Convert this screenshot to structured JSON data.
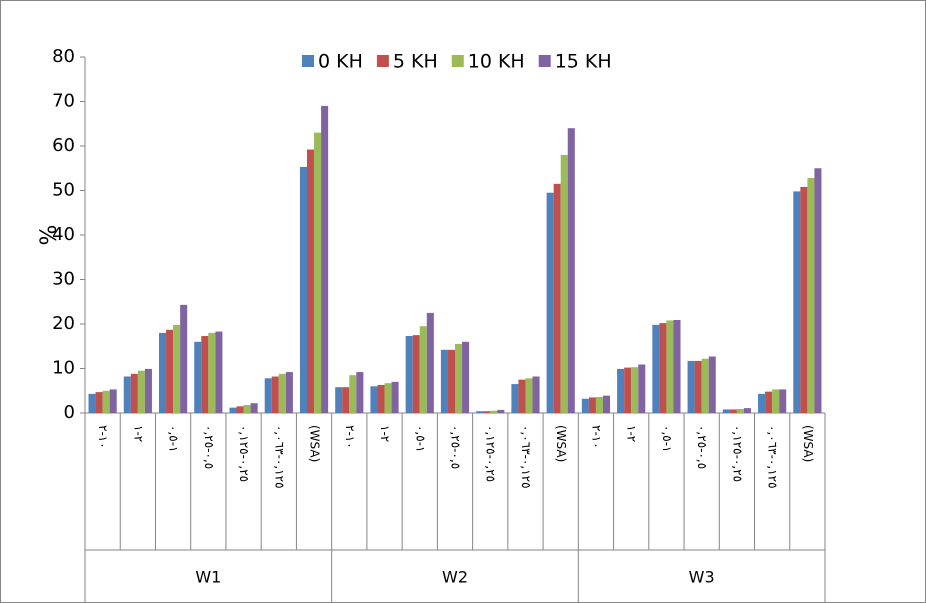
{
  "chart_data": {
    "type": "bar",
    "y_label": "%",
    "categories": [
      "١٠-٢",
      "٢-١",
      "١-٠,٥",
      "٠,٥-٠,٢٥",
      "٠,٢٥-٠,١٢٥",
      "٠,١٢٥-٠,٠٦٣",
      "(WSA)",
      "١٠-٢",
      "٢-١",
      "١-٠,٥",
      "٠,٥-٠,٢٥",
      "٠,٢٥-٠,١٢٥",
      "٠,١٢٥-٠,٠٦٣",
      "(WSA)",
      "١٠-٢",
      "٢-١",
      "١-٠,٥",
      "٠,٥-٠,٢٥",
      "٠,٢٥-٠,١٢٥",
      "٠,١٢٥-٠,٠٦٣",
      "(WSA)"
    ],
    "groups": [
      "W1",
      "W2",
      "W3"
    ],
    "series": [
      {
        "name": "0 KH",
        "color": "#4f81bd",
        "values": [
          4.3,
          8.2,
          18,
          16,
          1.2,
          7.8,
          55.3,
          5.8,
          6,
          17.3,
          14.2,
          0.4,
          6.5,
          49.5,
          3.2,
          9.9,
          19.8,
          11.7,
          0.8,
          4.3,
          49.8
        ]
      },
      {
        "name": "5 KH",
        "color": "#c0504d",
        "values": [
          4.7,
          8.8,
          18.7,
          17.3,
          1.5,
          8.2,
          59.2,
          5.8,
          6.3,
          17.5,
          14.2,
          0.4,
          7.5,
          51.5,
          3.5,
          10.2,
          20.2,
          11.7,
          0.8,
          4.8,
          50.8
        ]
      },
      {
        "name": "10 KH",
        "color": "#9bbb59",
        "values": [
          5,
          9.5,
          19.8,
          18,
          1.8,
          8.8,
          63,
          8.5,
          6.7,
          19.5,
          15.5,
          0.5,
          7.8,
          58,
          3.6,
          10.3,
          20.8,
          12.2,
          0.9,
          5.3,
          52.8
        ]
      },
      {
        "name": "15 KH",
        "color": "#8064a2",
        "values": [
          5.3,
          9.9,
          24.3,
          18.3,
          2.2,
          9.2,
          69,
          9.2,
          7,
          22.5,
          16,
          0.7,
          8.2,
          64,
          3.9,
          10.9,
          20.9,
          12.7,
          1.1,
          5.3,
          55
        ]
      }
    ],
    "ylim": [
      0,
      80
    ],
    "yticks": [
      0,
      10,
      20,
      30,
      40,
      50,
      60,
      70,
      80
    ],
    "grid": false,
    "legend": "top"
  }
}
